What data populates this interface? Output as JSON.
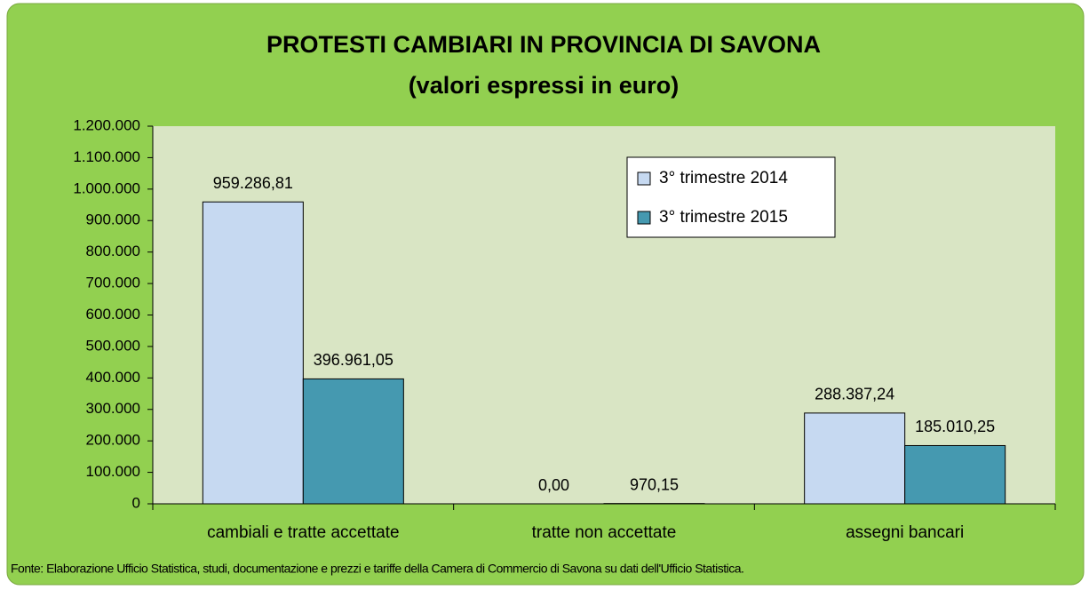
{
  "chart_data": {
    "type": "bar",
    "title": "PROTESTI CAMBIARI IN PROVINCIA DI SAVONA",
    "subtitle": "(valori espressi in euro)",
    "source": "Fonte: Elaborazione Ufficio Statistica, studi, documentazione e prezzi e tariffe della Camera di Commercio di Savona su dati dell'Ufficio Statistica.",
    "categories": [
      "cambiali e tratte accettate",
      "tratte non accettate",
      "assegni bancari"
    ],
    "series": [
      {
        "name": "3° trimestre 2014",
        "color": "#c6d9f1",
        "values": [
          959286.81,
          0,
          288387.24
        ],
        "value_labels": [
          "959.286,81",
          "0,00",
          "288.387,24"
        ]
      },
      {
        "name": "3° trimestre 2015",
        "color": "#4599b0",
        "values": [
          396961.05,
          970.15,
          185010.25
        ],
        "value_labels": [
          "396.961,05",
          "970,15",
          "185.010,25"
        ]
      }
    ],
    "ylim": [
      0,
      1200000
    ],
    "yticks": [
      0,
      {
        "value": 100000,
        "label": "100.000"
      },
      {
        "value": 200000,
        "label": "200.000"
      },
      {
        "value": 300000,
        "label": "300.000"
      },
      {
        "value": 400000,
        "label": "400.000"
      },
      {
        "value": 500000,
        "label": "500.000"
      },
      {
        "value": 600000,
        "label": "600.000"
      },
      {
        "value": 700000,
        "label": "700.000"
      },
      {
        "value": 800000,
        "label": "800.000"
      },
      {
        "value": 900000,
        "label": "900.000"
      },
      {
        "value": 1000000,
        "label": "1.000.000"
      },
      {
        "value": 1100000,
        "label": "1.100.000"
      },
      {
        "value": 1200000,
        "label": "1.200.000"
      }
    ],
    "legend": "upper-right",
    "grid": false
  }
}
